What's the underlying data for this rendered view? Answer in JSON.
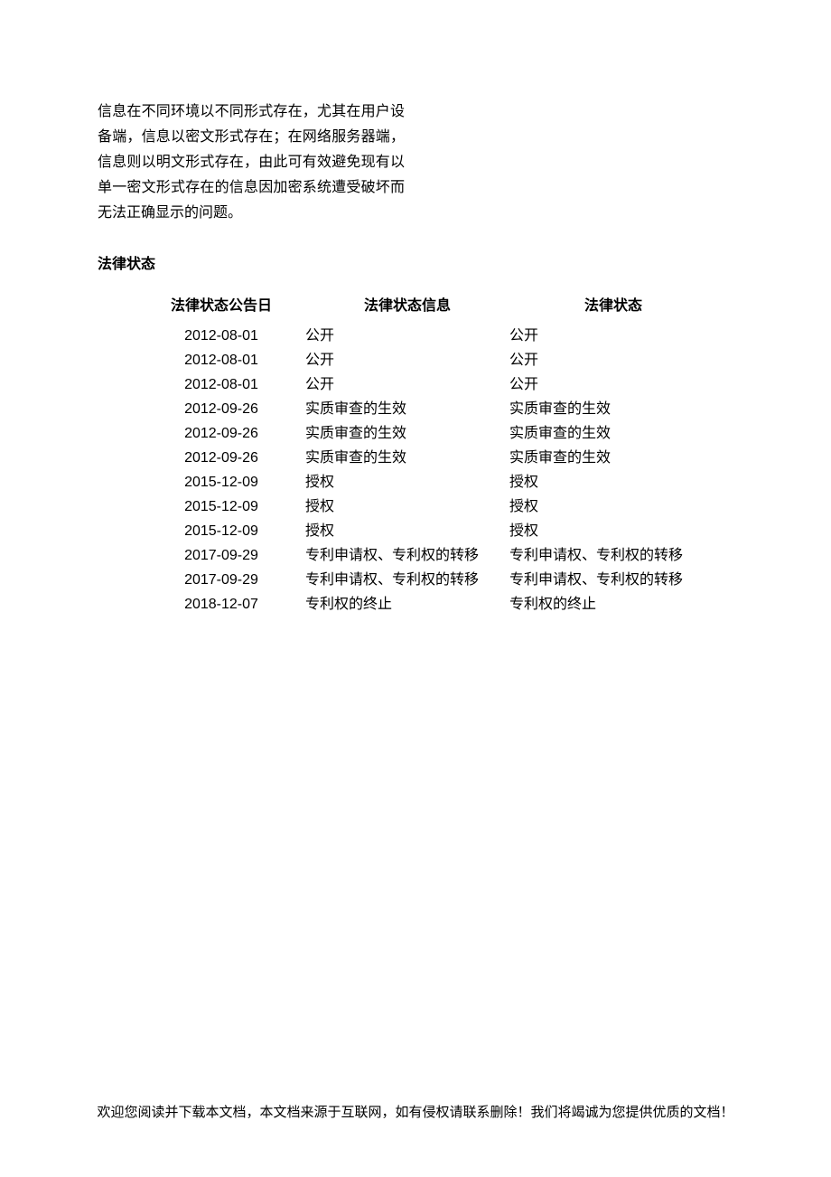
{
  "document": {
    "paragraph": "信息在不同环境以不同形式存在，尤其在用户设备端，信息以密文形式存在；在网络服务器端，信息则以明文形式存在，由此可有效避免现有以单一密文形式存在的信息因加密系统遭受破坏而无法正确显示的问题。",
    "section_heading": "法律状态",
    "table": {
      "headers": {
        "date": "法律状态公告日",
        "info": "法律状态信息",
        "status": "法律状态"
      },
      "rows": [
        {
          "date": "2012-08-01",
          "info": "公开",
          "status": "公开"
        },
        {
          "date": "2012-08-01",
          "info": "公开",
          "status": "公开"
        },
        {
          "date": "2012-08-01",
          "info": "公开",
          "status": "公开"
        },
        {
          "date": "2012-09-26",
          "info": "实质审查的生效",
          "status": "实质审查的生效"
        },
        {
          "date": "2012-09-26",
          "info": "实质审查的生效",
          "status": "实质审查的生效"
        },
        {
          "date": "2012-09-26",
          "info": "实质审查的生效",
          "status": "实质审查的生效"
        },
        {
          "date": "2015-12-09",
          "info": "授权",
          "status": "授权"
        },
        {
          "date": "2015-12-09",
          "info": "授权",
          "status": "授权"
        },
        {
          "date": "2015-12-09",
          "info": "授权",
          "status": "授权"
        },
        {
          "date": "2017-09-29",
          "info": "专利申请权、专利权的转移",
          "status": "专利申请权、专利权的转移"
        },
        {
          "date": "2017-09-29",
          "info": "专利申请权、专利权的转移",
          "status": "专利申请权、专利权的转移"
        },
        {
          "date": "2018-12-07",
          "info": "专利权的终止",
          "status": "专利权的终止"
        }
      ]
    },
    "footer": "欢迎您阅读并下载本文档，本文档来源于互联网，如有侵权请联系删除！我们将竭诚为您提供优质的文档！"
  },
  "styles": {
    "background_color": "#ffffff",
    "text_color": "#000000",
    "font_size_body": 16,
    "line_height_paragraph": 28,
    "line_height_row": 27,
    "paragraph_width": 340
  }
}
